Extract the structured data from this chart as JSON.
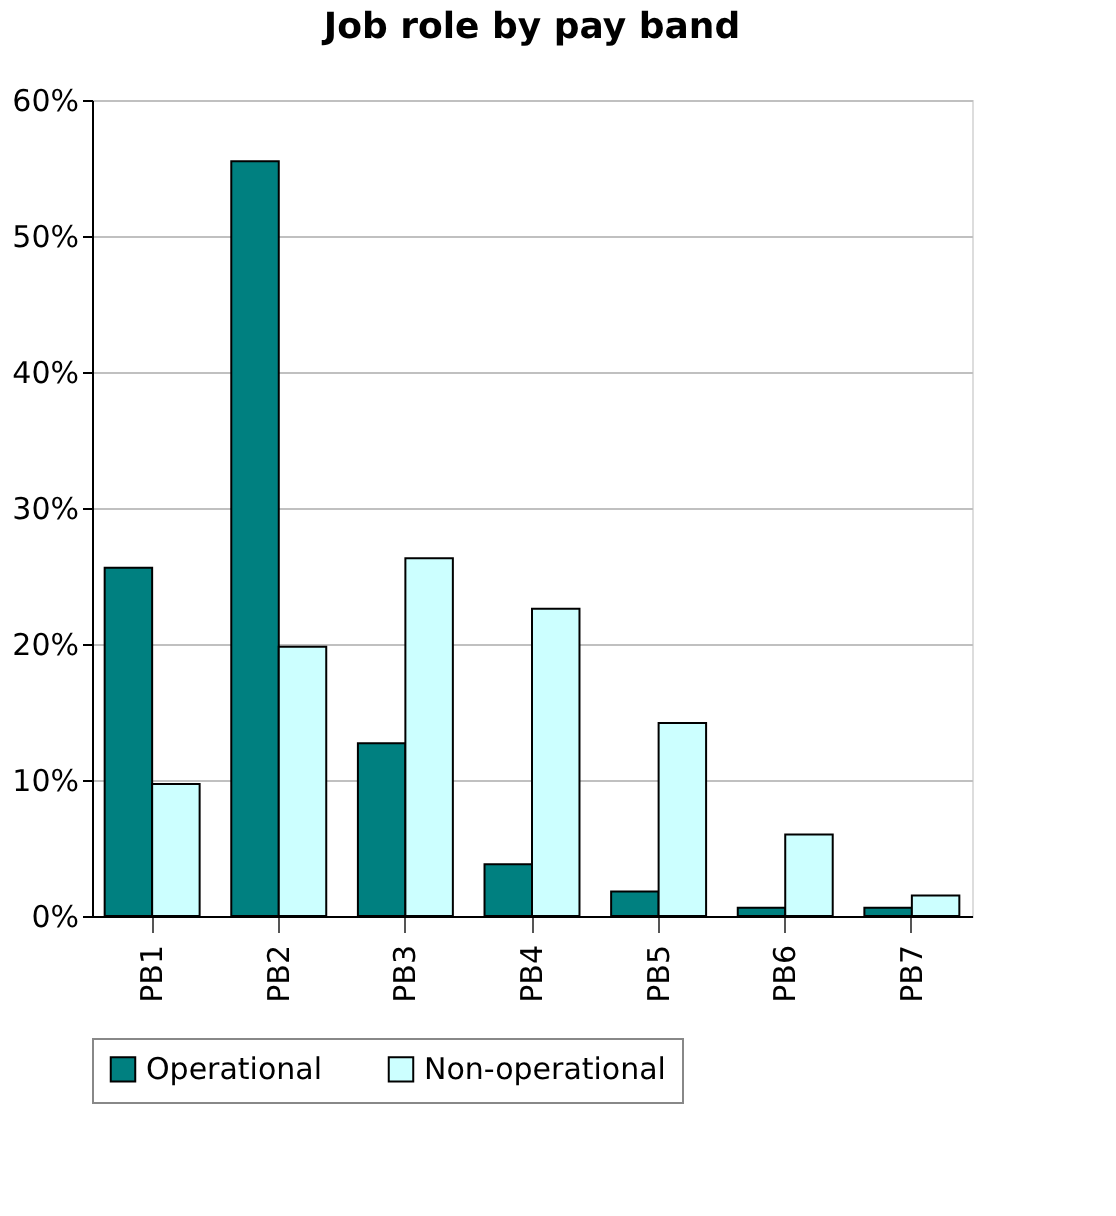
{
  "chart_data": {
    "type": "bar",
    "title": "Job role by pay band",
    "categories": [
      "PB1",
      "PB2",
      "PB3",
      "PB4",
      "PB5",
      "PB6",
      "PB7"
    ],
    "series": [
      {
        "name": "Operational",
        "color": "#008080",
        "values": [
          25.6,
          55.5,
          12.7,
          3.8,
          1.8,
          0.6,
          0.6
        ]
      },
      {
        "name": "Non-operational",
        "color": "#ccffff",
        "values": [
          9.7,
          19.8,
          26.3,
          22.6,
          14.2,
          6.0,
          1.5
        ]
      }
    ],
    "ylim": [
      0,
      60
    ],
    "yticks": [
      {
        "value": 0,
        "label": "0%"
      },
      {
        "value": 10,
        "label": "10%"
      },
      {
        "value": 20,
        "label": "20%"
      },
      {
        "value": 30,
        "label": "30%"
      },
      {
        "value": 40,
        "label": "40%"
      },
      {
        "value": 50,
        "label": "50%"
      },
      {
        "value": 60,
        "label": "60%"
      }
    ],
    "grid": "y",
    "legend": "bottom"
  }
}
